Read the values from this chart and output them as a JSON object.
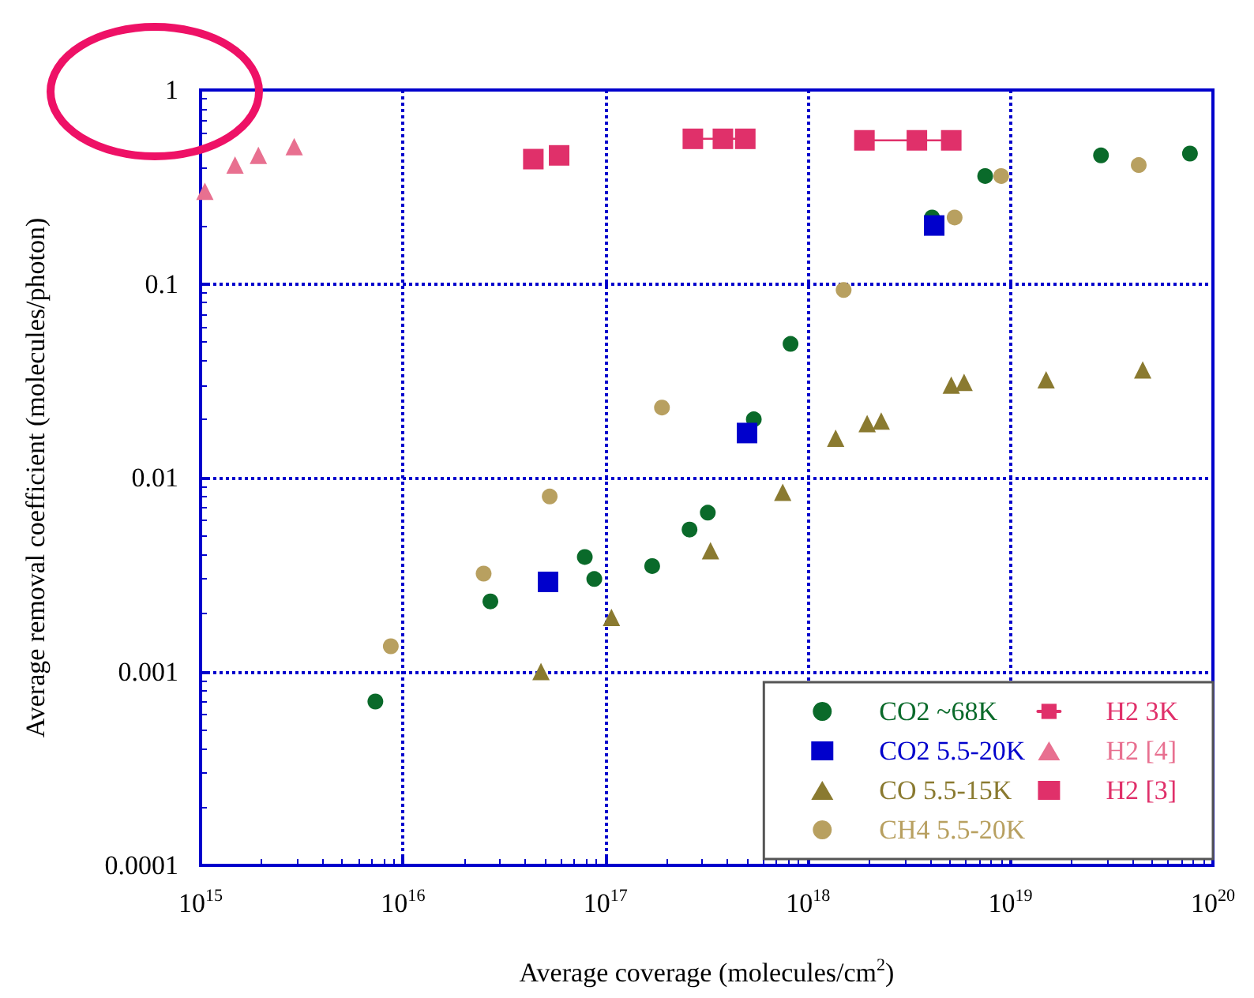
{
  "chart_data": {
    "type": "scatter",
    "xlabel": "Average coverage (molecules/cm$^{2}$)",
    "ylabel": "Average removal coefficient (molecules/photon)",
    "log": "xy",
    "grid": true,
    "legend": "bottom right",
    "xlim": [
      1000000000000000.0,
      1e+20
    ],
    "xticks": [
      {
        "value": 1000000000000000.0,
        "label": "10$^{15}$"
      },
      {
        "value": 1e+16,
        "label": "10$^{16}$"
      },
      {
        "value": 1e+17,
        "label": "10$^{17}$"
      },
      {
        "value": 1e+18,
        "label": "10$^{18}$"
      },
      {
        "value": 1e+19,
        "label": "10$^{19}$"
      },
      {
        "value": 1e+20,
        "label": "10$^{20}$"
      }
    ],
    "ylim": [
      0.0001,
      1
    ],
    "yticks": [
      0.0001,
      0.001,
      0.01,
      0.1,
      1
    ],
    "series": [
      {
        "name": "CO2 ~68K",
        "color": "#0a6a2a",
        "marker": "circle",
        "x": [
          7300000000000000.0,
          2.7e+16,
          7.9e+16,
          8.8e+16,
          1.7e+17,
          2.6e+17,
          3.2e+17,
          5.4e+17,
          8.2e+17,
          4.1e+18,
          7.5e+18,
          2.8e+19,
          7.7e+19
        ],
        "values": [
          0.0007,
          0.0023,
          0.0039,
          0.003,
          0.0035,
          0.0054,
          0.0066,
          0.02,
          0.049,
          0.22,
          0.36,
          0.46,
          0.47
        ]
      },
      {
        "name": "CO2 5.5-20K",
        "color": "#0000cc",
        "marker": "square",
        "x": [
          5.2e+16,
          5e+17,
          4.2e+18
        ],
        "values": [
          0.0029,
          0.017,
          0.2
        ]
      },
      {
        "name": "CO 5.5-15K",
        "color": "#8a7a30",
        "marker": "triangle",
        "x": [
          4.8e+16,
          1.07e+17,
          3.3e+17,
          7.5e+17,
          1.37e+18,
          1.96e+18,
          2.3e+18,
          5.1e+18,
          5.9e+18,
          1.5e+19,
          4.5e+19
        ],
        "values": [
          0.001,
          0.0019,
          0.0042,
          0.0084,
          0.016,
          0.019,
          0.0196,
          0.03,
          0.031,
          0.032,
          0.036
        ]
      },
      {
        "name": "CH4 5.5-20K",
        "color": "#b8a060",
        "marker": "circle",
        "x": [
          8700000000000000.0,
          2.5e+16,
          5.3e+16,
          1.9e+17,
          1.5e+18,
          5.3e+18,
          9e+18,
          4.3e+19
        ],
        "values": [
          0.00135,
          0.0032,
          0.008,
          0.023,
          0.093,
          0.22,
          0.36,
          0.41
        ]
      },
      {
        "name": "H2 3K",
        "color": "#e0306a",
        "type": "line",
        "line_style": "solid",
        "marker": "square",
        "x": [
          4.4e+16,
          null,
          2.7e+17,
          3.8e+17,
          4.9e+17,
          null,
          1.9e+18,
          3.45e+18,
          5.1e+18
        ],
        "values": [
          0.44,
          null,
          0.56,
          0.56,
          0.56,
          null,
          0.55,
          0.55,
          0.55
        ]
      },
      {
        "name": "H2 [4]",
        "color": "#e87090",
        "marker": "triangle",
        "x": [
          1050000000000000.0,
          1480000000000000.0,
          1930000000000000.0,
          2900000000000000.0
        ],
        "values": [
          0.3,
          0.41,
          0.46,
          0.51
        ]
      },
      {
        "name": "H2 [3]",
        "color": "#e0306a",
        "marker": "square",
        "x": [
          5.9e+16
        ],
        "values": [
          0.46
        ]
      }
    ]
  }
}
